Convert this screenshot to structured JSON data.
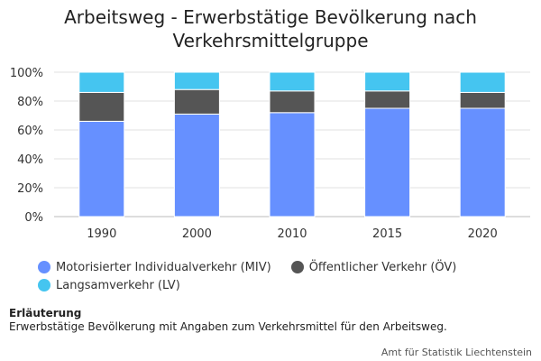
{
  "chart_data": {
    "type": "bar",
    "stacked": true,
    "title": "Arbeitsweg - Erwerbstätige Bevölkerung nach Verkehrsmittelgruppe",
    "categories": [
      "1990",
      "2000",
      "2010",
      "2015",
      "2020"
    ],
    "series": [
      {
        "name": "Motorisierter Individualverkehr (MIV)",
        "color": "#6690ff",
        "values": [
          66,
          71,
          72,
          75,
          75
        ]
      },
      {
        "name": "Öffentlicher Verkehr (ÖV)",
        "color": "#555555",
        "values": [
          20,
          17,
          15,
          12,
          11
        ]
      },
      {
        "name": "Langsamverkehr (LV)",
        "color": "#45c5f0",
        "values": [
          14,
          12,
          13,
          13,
          14
        ]
      }
    ],
    "yticks": [
      "0%",
      "20%",
      "40%",
      "60%",
      "80%",
      "100%"
    ],
    "ylim": [
      0,
      100
    ],
    "grid": true,
    "legend_position": "bottom-left"
  },
  "notes": {
    "heading": "Erläuterung",
    "text": "Erwerbstätige Bevölkerung mit Angaben zum Verkehrsmittel für den Arbeitsweg."
  },
  "credit": "Amt für Statistik Liechtenstein"
}
